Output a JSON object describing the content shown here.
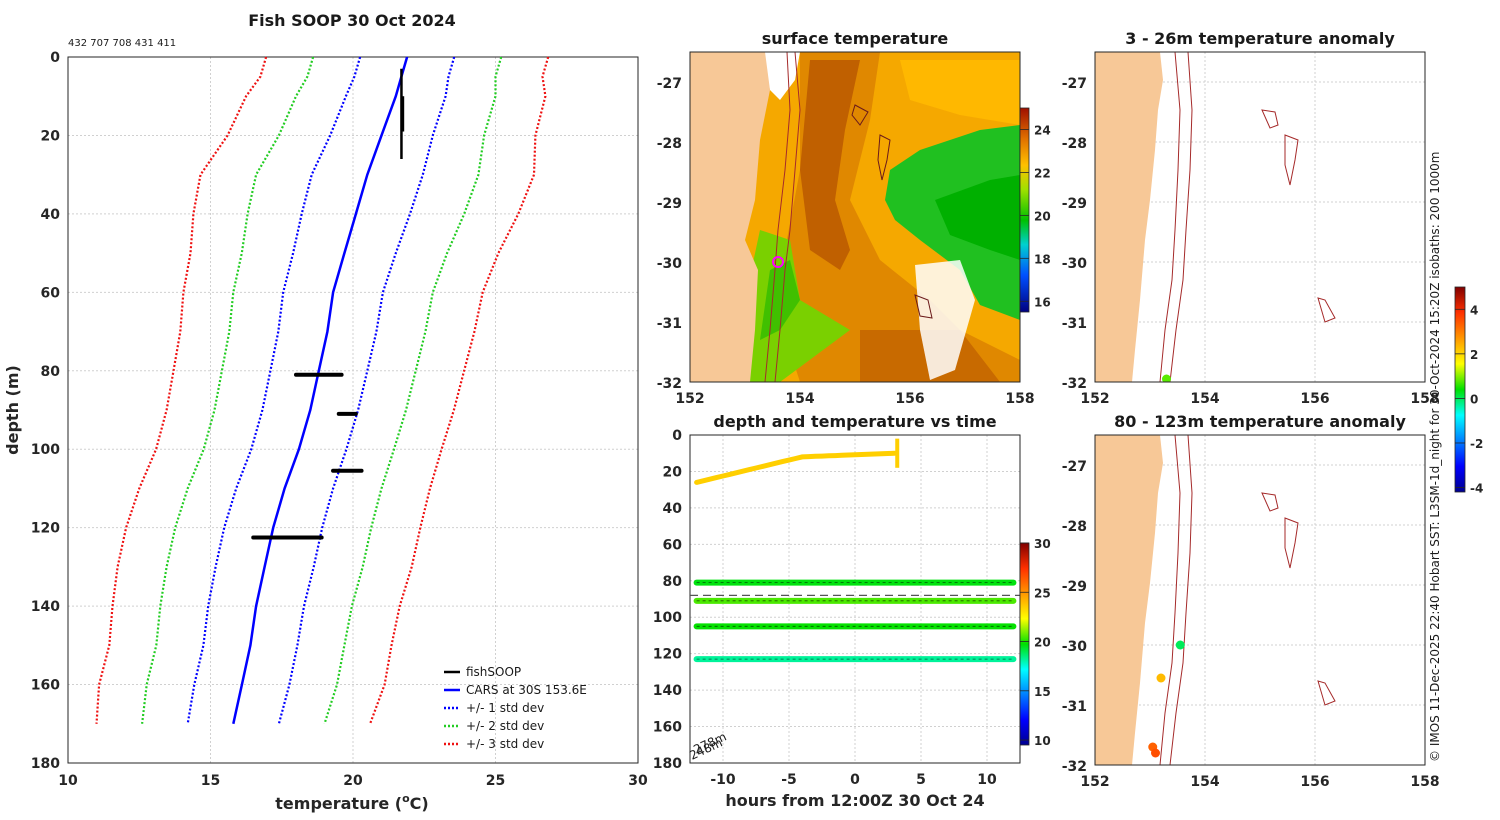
{
  "colors": {
    "land": "#f7c897",
    "isobath": "#a52a2a",
    "fish": "#000000",
    "cars": "#0000ff",
    "std1": "#0000ff",
    "std2": "#22cc22",
    "std3": "#ee1111"
  },
  "chart_data": [
    {
      "id": "profile",
      "type": "line",
      "title": "Fish SOOP 30 Oct 2024",
      "subtitle": "432 707 708 431 411",
      "xlabel": "temperature (",
      "xlabel_sup": "o",
      "xlabel_end": "C)",
      "ylabel": "depth (m)",
      "xlim": [
        10,
        30
      ],
      "ylim": [
        0,
        180
      ],
      "xticks": [
        "10",
        "15",
        "20",
        "25",
        "30"
      ],
      "yticks": [
        "0",
        "20",
        "40",
        "60",
        "80",
        "100",
        "120",
        "140",
        "160",
        "180"
      ],
      "legend_position": "bottom-right",
      "legend": [
        "fishSOOP",
        "CARS at 30S 153.6E",
        "+/- 1 std dev",
        "+/- 2 std dev",
        "+/- 3 std dev"
      ],
      "depth": [
        0,
        5,
        10,
        20,
        30,
        40,
        50,
        60,
        70,
        80,
        90,
        100,
        110,
        120,
        130,
        140,
        150,
        160,
        170
      ],
      "cars": [
        21.9,
        21.7,
        21.5,
        21.0,
        20.5,
        20.1,
        19.7,
        19.3,
        19.1,
        18.8,
        18.5,
        18.1,
        17.6,
        17.2,
        16.9,
        16.6,
        16.4,
        16.1,
        15.8
      ],
      "std": [
        1.65,
        1.65,
        1.75,
        1.8,
        1.95,
        1.9,
        1.8,
        1.75,
        1.72,
        1.7,
        1.68,
        1.67,
        1.7,
        1.72,
        1.72,
        1.68,
        1.65,
        1.67,
        1.6
      ],
      "fish_samples": [
        {
          "temp": 21.7,
          "depth_min": 3,
          "depth_max": 26
        },
        {
          "temp_min": 18.0,
          "temp_max": 19.6,
          "depth": 81
        },
        {
          "temp_min": 19.5,
          "temp_max": 20.1,
          "depth": 91
        },
        {
          "temp_min": 19.3,
          "temp_max": 20.3,
          "depth": 105.5
        },
        {
          "temp_min": 16.5,
          "temp_max": 18.9,
          "depth": 122.5
        }
      ]
    },
    {
      "id": "surface-map",
      "type": "heatmap",
      "title": "surface temperature",
      "xlim": [
        152,
        158
      ],
      "ylim": [
        -32,
        -26.5
      ],
      "xticks": [
        "152",
        "154",
        "156",
        "158"
      ],
      "yticks": [
        "-27",
        "-28",
        "-29",
        "-30",
        "-31",
        "-32"
      ],
      "colorbar_ticks": [
        "24",
        "22",
        "20",
        "18",
        "16"
      ],
      "colorbar_range": [
        15.5,
        25
      ],
      "marker": {
        "lon": 153.6,
        "lat": -30.0
      }
    },
    {
      "id": "depth-time",
      "type": "scatter",
      "title": "depth and temperature vs time",
      "xlabel": "hours from 12:00Z 30 Oct 24",
      "xlim": [
        -12.5,
        12.5
      ],
      "ylim": [
        0,
        180
      ],
      "xticks": [
        "-10",
        "-5",
        "0",
        "5",
        "10"
      ],
      "yticks": [
        "0",
        "20",
        "40",
        "60",
        "80",
        "100",
        "120",
        "140",
        "160",
        "180"
      ],
      "colorbar_ticks": [
        "30",
        "25",
        "20",
        "15",
        "10"
      ],
      "colorbar_range": [
        9.5,
        30
      ],
      "annotation": "248m",
      "annotation2": "278m",
      "dashed_depth": 88,
      "tracks": [
        {
          "depth": 81,
          "temp": 19.6
        },
        {
          "depth": 91,
          "temp": 20.5
        },
        {
          "depth": 105,
          "temp": 19.8
        },
        {
          "depth": 123,
          "temp": 18.2
        }
      ]
    },
    {
      "id": "anomaly-3-26",
      "type": "scatter",
      "title": "3 - 26m temperature anomaly",
      "xlim": [
        152,
        158
      ],
      "ylim": [
        -32,
        -26.5
      ],
      "xticks": [
        "152",
        "154",
        "156",
        "158"
      ],
      "yticks": [
        "-27",
        "-28",
        "-29",
        "-30",
        "-31",
        "-32"
      ],
      "points": [
        {
          "lon": 153.3,
          "lat": -31.95,
          "anom": 0.8
        }
      ]
    },
    {
      "id": "anomaly-80-123",
      "type": "scatter",
      "title": "80 - 123m temperature anomaly",
      "xlim": [
        152,
        158
      ],
      "ylim": [
        -32,
        -26.5
      ],
      "xticks": [
        "152",
        "154",
        "156",
        "158"
      ],
      "yticks": [
        "-27",
        "-28",
        "-29",
        "-30",
        "-31",
        "-32"
      ],
      "points": [
        {
          "lon": 153.55,
          "lat": -30.0,
          "anom": 0.0
        },
        {
          "lon": 153.2,
          "lat": -30.55,
          "anom": 2.3
        },
        {
          "lon": 153.05,
          "lat": -31.7,
          "anom": 3.3
        },
        {
          "lon": 153.1,
          "lat": -31.8,
          "anom": 3.5
        }
      ],
      "colorbar_ticks": [
        "4",
        "2",
        "0",
        "-2",
        "-4"
      ],
      "colorbar_range": [
        -4.2,
        5.0
      ]
    }
  ],
  "credit": "© IMOS 11-Dec-2025 22:40 Hobart SST: L3SM-1d_night for 30-Oct-2024 15:20Z isobaths: 200  1000m"
}
